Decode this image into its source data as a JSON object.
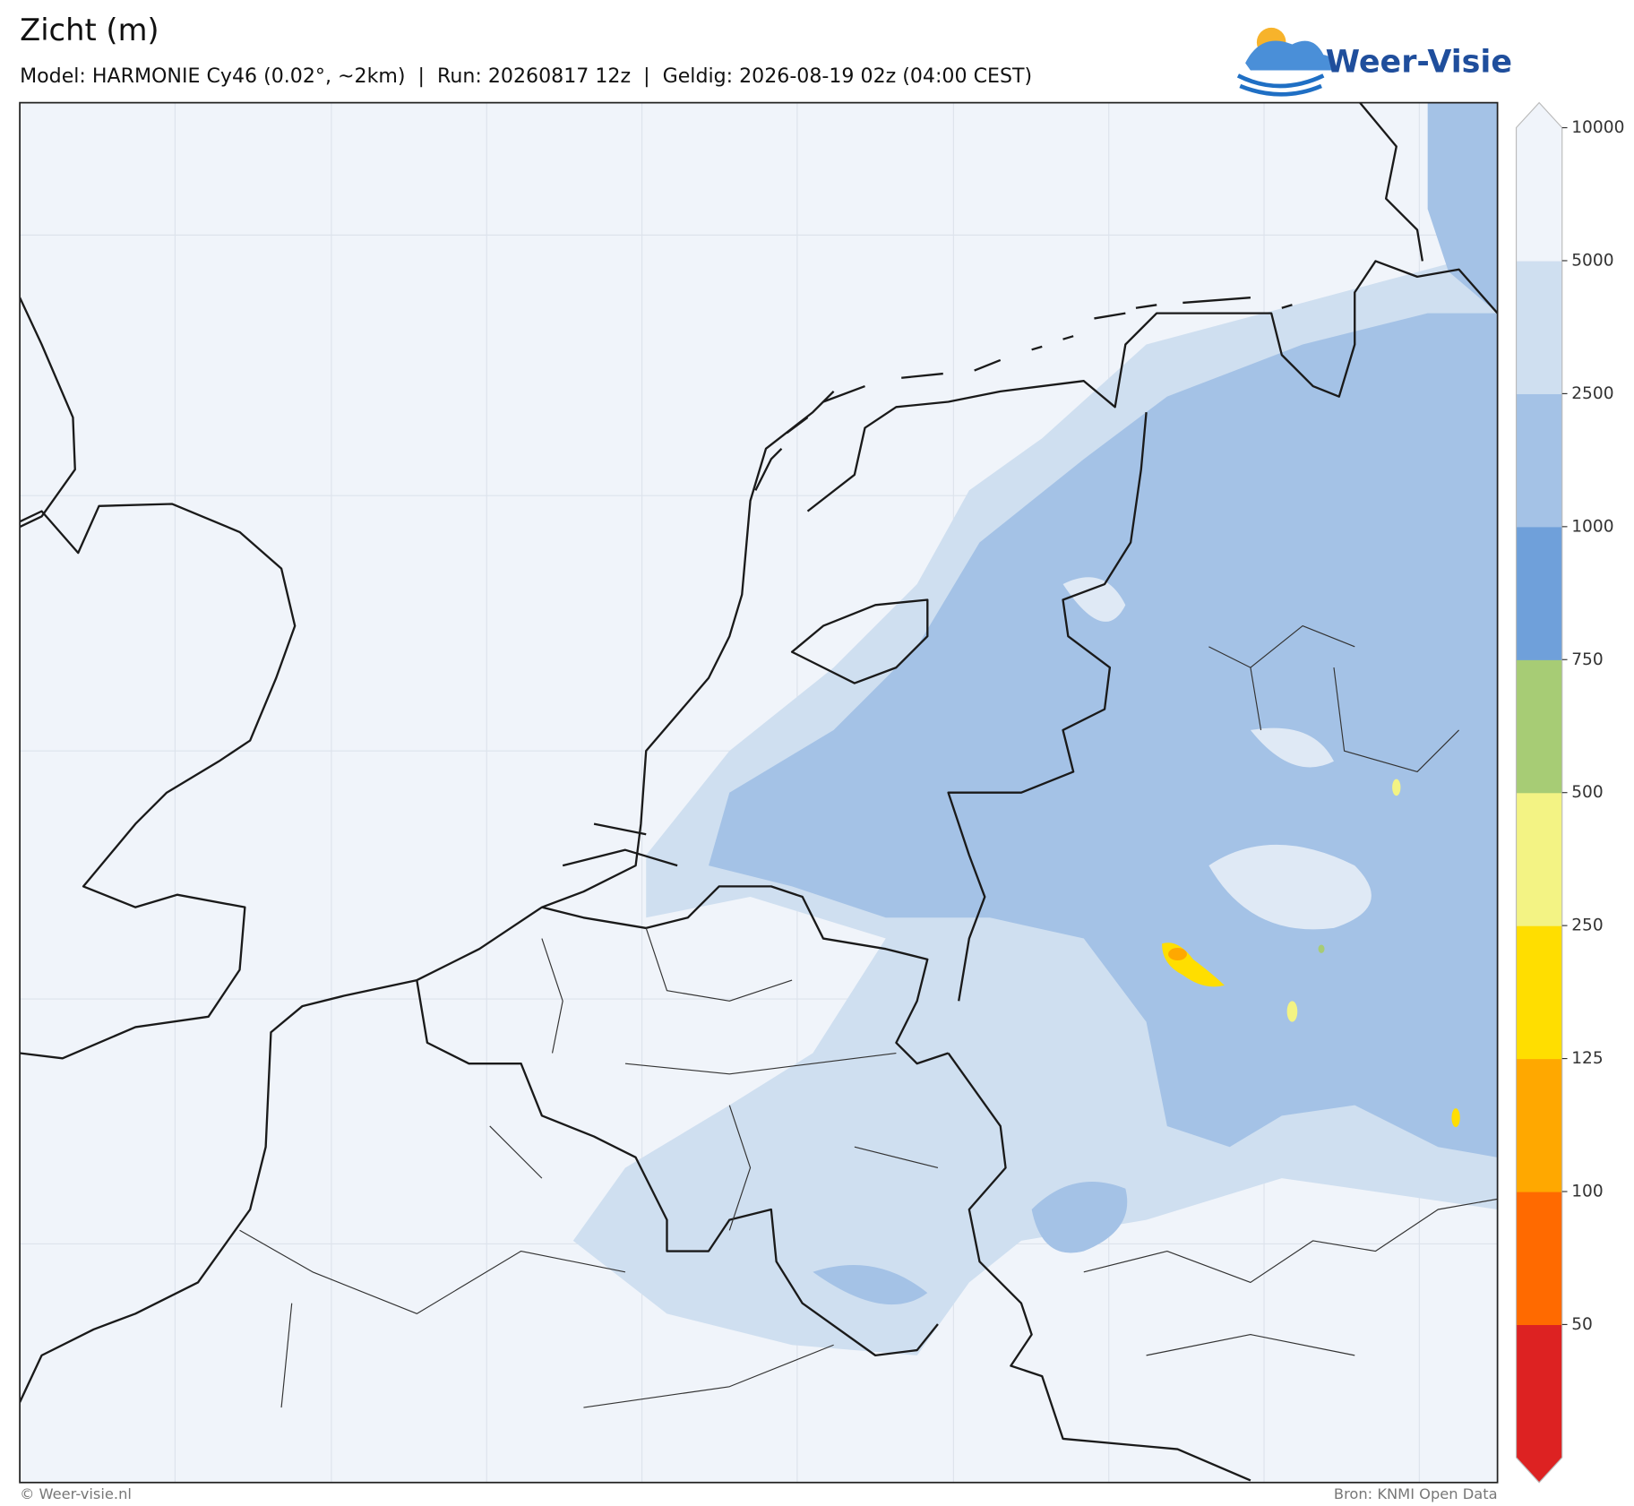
{
  "title": "Zicht (m)",
  "subtitle": "Model: HARMONIE Cy46 (0.02°, ~2km)  |  Run: 20260817 12z  |  Geldig: 2026-08-19 02z (04:00 CEST)",
  "logo": "Weer-Visie",
  "colorbar": {
    "levels": [
      50,
      100,
      125,
      250,
      500,
      750,
      1000,
      2500,
      5000,
      10000
    ],
    "colors": [
      "#dd2222",
      "#ff6a00",
      "#ffa800",
      "#ffde00",
      "#f3f384",
      "#a7cc75",
      "#6fa0da",
      "#a4c2e6",
      "#cfdff0",
      "#f0f4fa"
    ],
    "under_color": "#dd2222",
    "over_color": "#f0f4fa"
  },
  "footer": {
    "left": "© Weer-visie.nl",
    "right": "Bron: KNMI Open Data"
  }
}
